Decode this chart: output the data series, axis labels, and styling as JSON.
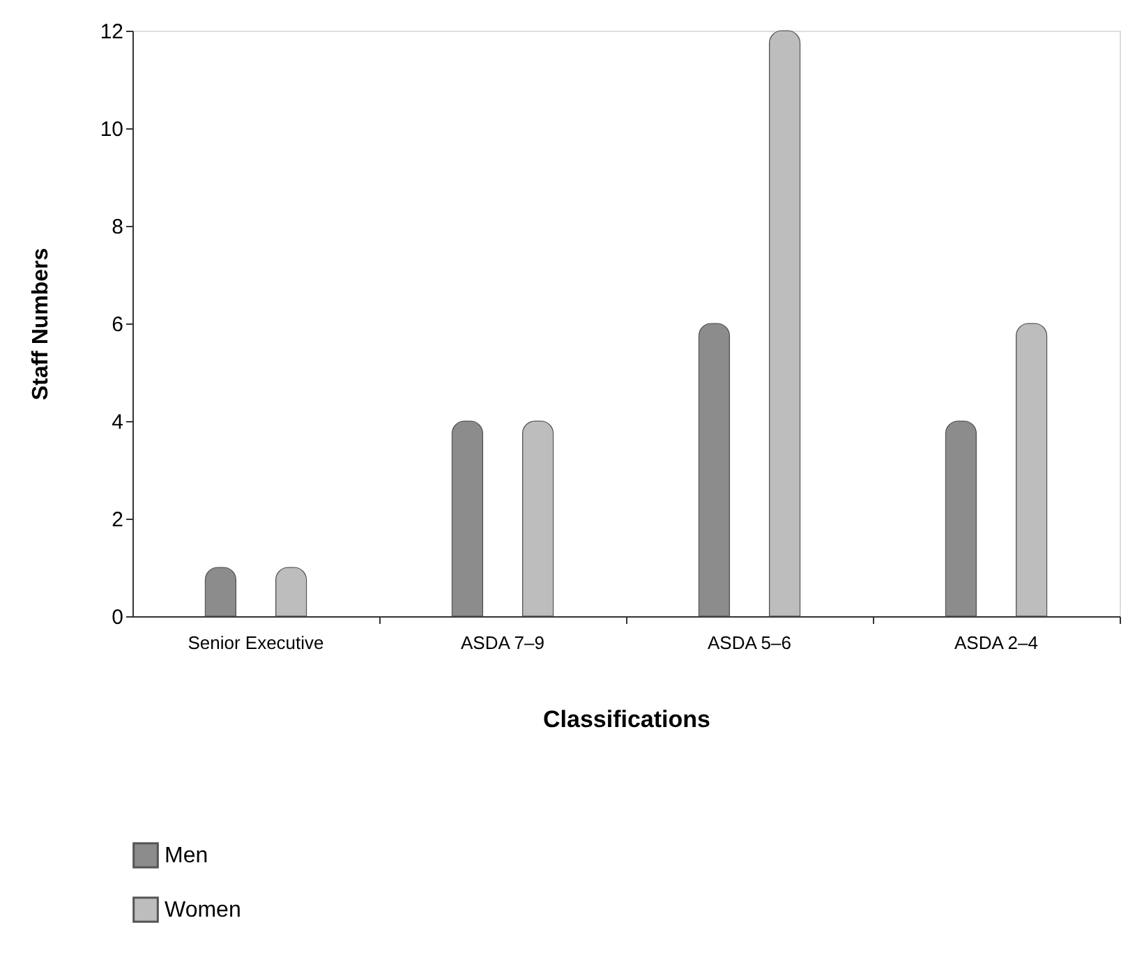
{
  "chart_data": {
    "type": "bar",
    "xlabel": "Classifications",
    "ylabel": "Staff Numbers",
    "categories": [
      "Senior Executive",
      "ASDA 7–9",
      "ASDA 5–6",
      "ASDA 2–4"
    ],
    "series": [
      {
        "name": "Men",
        "color": "#8c8c8c",
        "values": [
          1,
          4,
          6,
          4
        ]
      },
      {
        "name": "Women",
        "color": "#bdbdbd",
        "values": [
          1,
          4,
          12,
          6
        ]
      }
    ],
    "ylim": [
      0,
      12
    ],
    "yticks": [
      0,
      2,
      4,
      6,
      8,
      10,
      12
    ],
    "grid": false,
    "legend": "bottom"
  }
}
